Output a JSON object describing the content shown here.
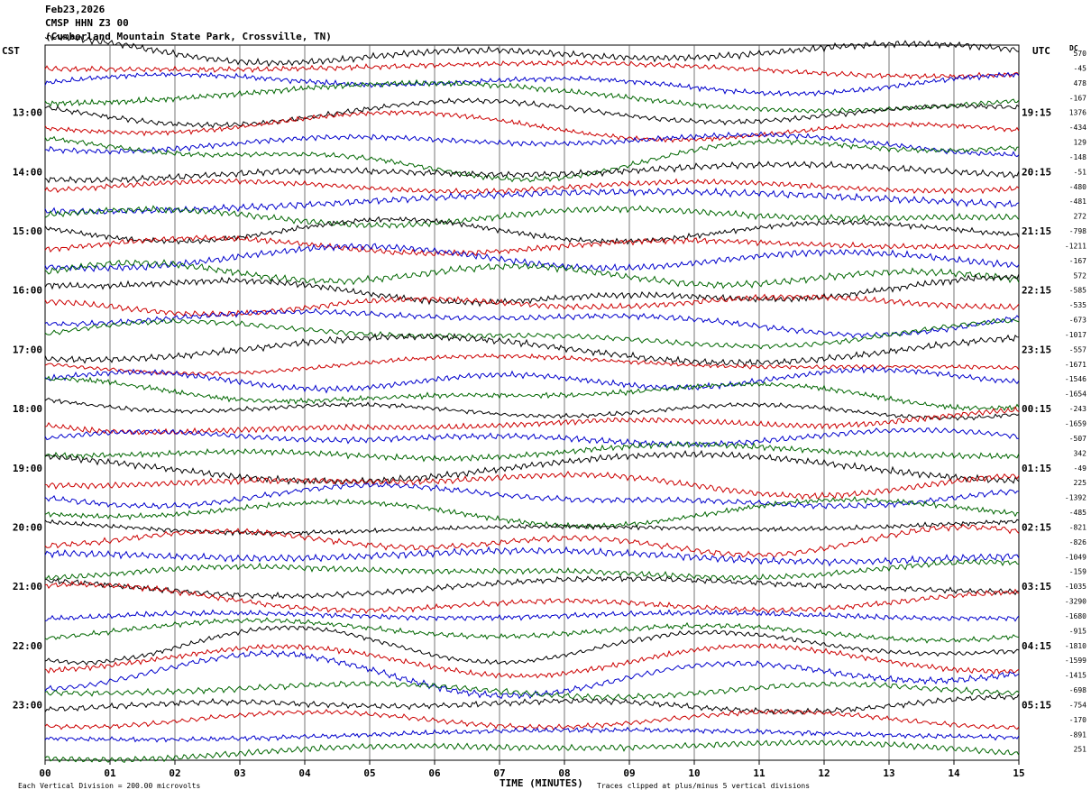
{
  "header": {
    "date": "Feb23,2026",
    "station": "CMSP HHN Z3 00",
    "location": "(Cumberland Mountain State Park, Crossville, TN)"
  },
  "left_axis_title": "CST",
  "right_axis_title": "UTC",
  "dc_title": "DC",
  "footer": {
    "scale": "Each Vertical Division =  200.00 microvolts",
    "xlabel": "TIME (MINUTES)",
    "clip": "Traces clipped at plus/minus 5 vertical divisions"
  },
  "colors": {
    "cycle": [
      "#000000",
      "#cc0000",
      "#0000cc",
      "#006600"
    ],
    "grid": "#555555"
  },
  "chart_data": {
    "type": "line",
    "description_type": "helicorder",
    "x_ticks": [
      "00",
      "01",
      "02",
      "03",
      "04",
      "05",
      "06",
      "07",
      "08",
      "09",
      "10",
      "11",
      "12",
      "13",
      "14",
      "15"
    ],
    "xlim": [
      0,
      15
    ],
    "traces_per_hour": 4,
    "trace_count": 48,
    "left_hour_labels": [
      "13:00",
      "14:00",
      "15:00",
      "16:00",
      "17:00",
      "18:00",
      "19:00",
      "20:00",
      "21:00",
      "22:00",
      "23:00"
    ],
    "right_hour_labels": [
      "19:15",
      "20:15",
      "21:15",
      "22:15",
      "23:15",
      "00:15",
      "01:15",
      "02:15",
      "03:15",
      "04:15",
      "05:15"
    ],
    "dc_offsets": [
      "570",
      "-45",
      "478",
      "-167",
      "1376",
      "-434",
      "129",
      "-148",
      "-51",
      "-480",
      "-481",
      "272",
      "-798",
      "-1211",
      "-167",
      "572",
      "-585",
      "-535",
      "-673",
      "-1017",
      "-557",
      "-1671",
      "-1546",
      "-1654",
      "-243",
      "-1659",
      "-507",
      "342",
      "-49",
      "225",
      "-1392",
      "-485",
      "-821",
      "-826",
      "-1049",
      "-159",
      "-1035",
      "-3290",
      "-1680",
      "-915",
      "-1810",
      "-1599",
      "-1415",
      "-698",
      "-754",
      "-170",
      "-891",
      "251"
    ]
  }
}
